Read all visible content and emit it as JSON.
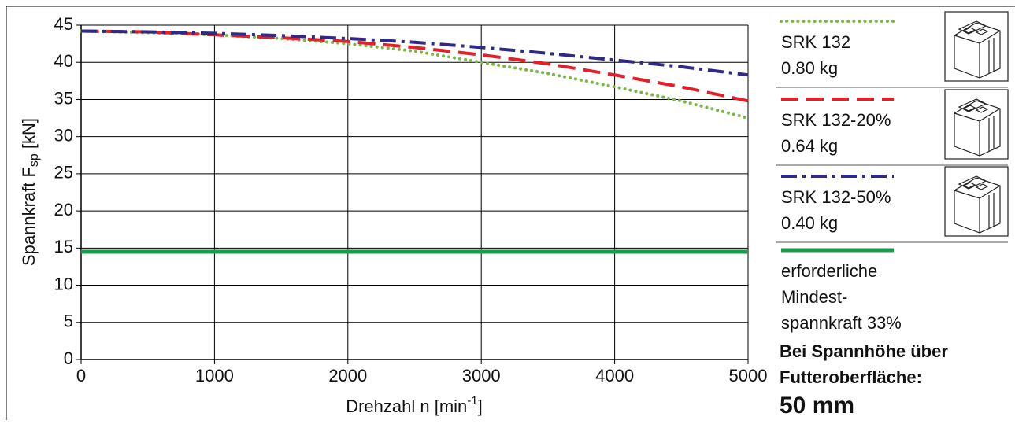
{
  "chart_data": {
    "type": "line",
    "y_label": {
      "main": "Spannkraft F",
      "sub": "sp",
      "unit": " [kN]"
    },
    "x_label": {
      "main": "Drehzahl n [min",
      "sup": "-1",
      "end": "]"
    },
    "xlim": [
      0,
      5000
    ],
    "xticks": [
      0,
      1000,
      2000,
      3000,
      4000,
      5000
    ],
    "ylim": [
      0,
      45
    ],
    "yticks": [
      0,
      5,
      10,
      15,
      20,
      25,
      30,
      35,
      40,
      45
    ],
    "grid": true,
    "series": [
      {
        "legend": [
          "SRK 132",
          "0.80 kg"
        ],
        "color": "#7ab648",
        "line_style": "dotted",
        "x": [
          0,
          500,
          1000,
          1500,
          2000,
          2500,
          3000,
          3500,
          4000,
          4500,
          5000
        ],
        "values": [
          44.2,
          44.0,
          43.7,
          43.2,
          42.5,
          41.5,
          40.0,
          38.5,
          36.7,
          34.8,
          32.5
        ]
      },
      {
        "legend": [
          "SRK 132-20%",
          "0.64 kg"
        ],
        "color": "#e3202a",
        "line_style": "dashed",
        "x": [
          0,
          500,
          1000,
          1500,
          2000,
          2500,
          3000,
          3500,
          4000,
          4500,
          5000
        ],
        "values": [
          44.2,
          44.1,
          43.7,
          43.3,
          42.8,
          42.0,
          41.0,
          39.8,
          38.3,
          36.7,
          34.8
        ]
      },
      {
        "legend": [
          "SRK 132-50%",
          "0.40 kg"
        ],
        "color": "#2e2a85",
        "line_style": "dashdot",
        "x": [
          0,
          500,
          1000,
          1500,
          2000,
          2500,
          3000,
          3500,
          4000,
          4500,
          5000
        ],
        "values": [
          44.2,
          44.1,
          43.9,
          43.6,
          43.2,
          42.7,
          42.0,
          41.2,
          40.3,
          39.4,
          38.3
        ]
      },
      {
        "legend": [
          "erforderliche",
          "Mindest-",
          "spannkraft 33%"
        ],
        "color": "#1a9a4a",
        "line_style": "solid",
        "x": [
          0,
          5000
        ],
        "values": [
          14.5,
          14.5
        ]
      }
    ],
    "note": [
      "Bei Spannhöhe über",
      "Futteroberfläche:",
      "50 mm"
    ]
  }
}
